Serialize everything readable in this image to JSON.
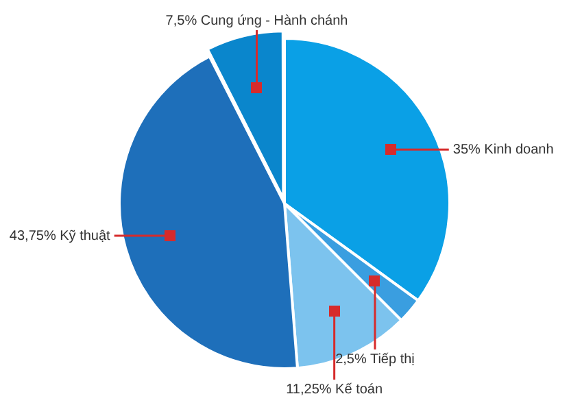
{
  "chart_data": {
    "type": "pie",
    "categories": [
      "Kinh doanh",
      "Tiếp thị",
      "Kế toán",
      "Kỹ thuật",
      "Cung ứng - Hành chánh"
    ],
    "values": [
      35,
      2.5,
      11.25,
      43.75,
      7.5
    ],
    "value_labels": [
      "35%",
      "2,5%",
      "11,25%",
      "43,75%",
      "7,5%"
    ],
    "colors": [
      "#0aa0e6",
      "#3a9ee0",
      "#7cc3ee",
      "#1e6fba",
      "#0a86cc"
    ],
    "legend": false
  }
}
